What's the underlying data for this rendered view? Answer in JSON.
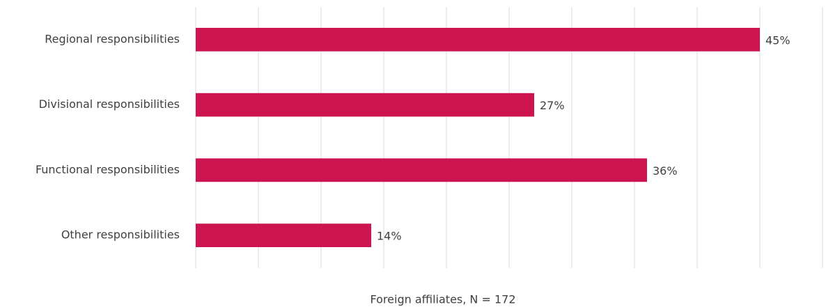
{
  "chart_data": {
    "type": "bar",
    "orientation": "horizontal",
    "categories": [
      "Regional responsibilities",
      "Divisional responsibilities",
      "Functional responsibilities",
      "Other responsibilities"
    ],
    "values": [
      45,
      27,
      36,
      14
    ],
    "value_labels": [
      "45%",
      "27%",
      "36%",
      "14%"
    ],
    "color": "#cd1451",
    "x_label": "Foreign affiliates, N = 172",
    "xlim": [
      0,
      50
    ],
    "xticks": [
      0,
      5,
      10,
      15,
      20,
      25,
      30,
      35,
      40,
      45,
      50
    ],
    "grid": true
  }
}
